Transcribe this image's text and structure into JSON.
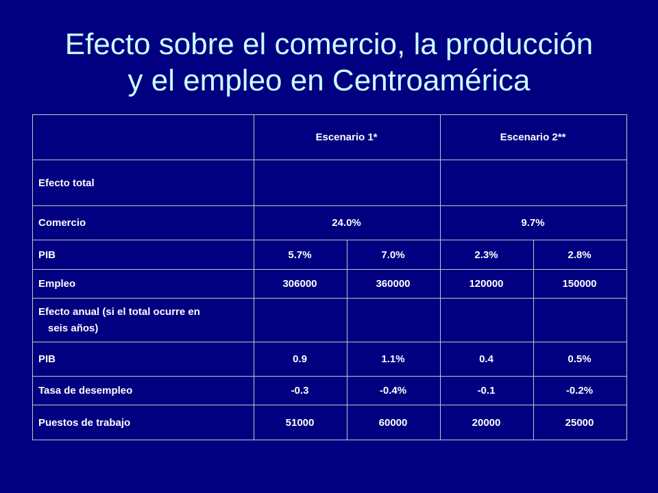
{
  "title_line1": "Efecto sobre el comercio, la producción",
  "title_line2": "y el empleo en Centroamérica",
  "table": {
    "header": {
      "scenario1": "Escenario 1*",
      "scenario2": "Escenario 2**"
    },
    "section_total": "Efecto total",
    "comercio": {
      "label": "Comercio",
      "s1": "24.0%",
      "s2": "9.7%"
    },
    "pib_total": {
      "label": "PIB",
      "values": [
        "5.7%",
        "7.0%",
        "2.3%",
        "2.8%"
      ]
    },
    "empleo": {
      "label": "Empleo",
      "values": [
        "306000",
        "360000",
        "120000",
        "150000"
      ]
    },
    "section_annual_line1": "Efecto anual (si el total ocurre en",
    "section_annual_line2": "seis años)",
    "pib_annual": {
      "label": "PIB",
      "values": [
        "0.9",
        "1.1%",
        "0.4",
        "0.5%"
      ]
    },
    "desempleo": {
      "label": "Tasa de desempleo",
      "values": [
        "-0.3",
        "-0.4%",
        "-0.1",
        "-0.2%"
      ]
    },
    "puestos": {
      "label": "Puestos de trabajo",
      "values": [
        "51000",
        "60000",
        "20000",
        "25000"
      ]
    }
  }
}
